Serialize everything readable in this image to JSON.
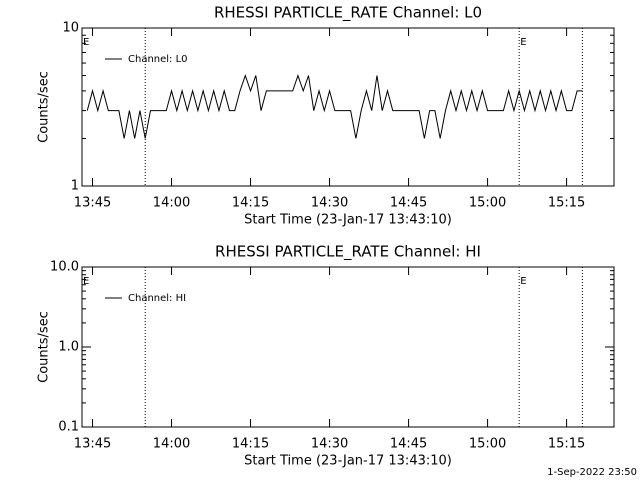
{
  "chart_data": [
    {
      "type": "line",
      "title": "RHESSI PARTICLE_RATE Channel: L0",
      "xlabel": "Start Time (23-Jan-17 13:43:10)",
      "ylabel": "Counts/sec",
      "log_y": true,
      "ylim": [
        1,
        10
      ],
      "yticks": [
        1,
        10
      ],
      "xlim": [
        "13:43",
        "15:24"
      ],
      "xticks": [
        "13:45",
        "14:00",
        "14:15",
        "14:30",
        "14:45",
        "15:00",
        "15:15"
      ],
      "event_lines": [
        "13:55",
        "15:06",
        "15:18"
      ],
      "event_label": "E",
      "event_label_x": [
        "13:43",
        "15:06"
      ],
      "legend": "upper left",
      "x": [
        "13:44",
        "13:45",
        "13:46",
        "13:47",
        "13:48",
        "13:49",
        "13:50",
        "13:51",
        "13:52",
        "13:53",
        "13:54",
        "13:55",
        "13:56",
        "13:57",
        "13:58",
        "13:59",
        "14:00",
        "14:01",
        "14:02",
        "14:03",
        "14:04",
        "14:05",
        "14:06",
        "14:07",
        "14:08",
        "14:09",
        "14:10",
        "14:11",
        "14:12",
        "14:13",
        "14:14",
        "14:15",
        "14:16",
        "14:17",
        "14:18",
        "14:19",
        "14:20",
        "14:21",
        "14:22",
        "14:23",
        "14:24",
        "14:25",
        "14:26",
        "14:27",
        "14:28",
        "14:29",
        "14:30",
        "14:31",
        "14:32",
        "14:33",
        "14:34",
        "14:35",
        "14:36",
        "14:37",
        "14:38",
        "14:39",
        "14:40",
        "14:41",
        "14:42",
        "14:43",
        "14:44",
        "14:45",
        "14:46",
        "14:47",
        "14:48",
        "14:49",
        "14:50",
        "14:51",
        "14:52",
        "14:53",
        "14:54",
        "14:55",
        "14:56",
        "14:57",
        "14:58",
        "14:59",
        "15:00",
        "15:01",
        "15:02",
        "15:03",
        "15:04",
        "15:05",
        "15:06",
        "15:07",
        "15:08",
        "15:09",
        "15:10",
        "15:11",
        "15:12",
        "15:13",
        "15:14",
        "15:15",
        "15:16",
        "15:17",
        "15:18"
      ],
      "series": [
        {
          "name": "Channel: L0",
          "color": "#000000",
          "values": [
            3,
            4,
            3,
            4,
            3,
            3,
            3,
            2,
            3,
            2,
            3,
            2,
            3,
            3,
            3,
            3,
            4,
            3,
            4,
            3,
            4,
            3,
            4,
            3,
            4,
            3,
            4,
            3,
            3,
            4,
            5,
            4,
            5,
            3,
            4,
            4,
            4,
            4,
            4,
            4,
            5,
            4,
            5,
            3,
            4,
            3,
            4,
            3,
            3,
            3,
            3,
            2,
            3,
            4,
            3,
            5,
            3,
            4,
            3,
            3,
            3,
            3,
            3,
            3,
            2,
            3,
            3,
            2,
            3,
            4,
            3,
            4,
            3,
            4,
            3,
            4,
            3,
            3,
            3,
            3,
            4,
            3,
            4,
            3,
            4,
            3,
            4,
            3,
            4,
            3,
            4,
            3,
            3,
            4,
            4
          ]
        }
      ]
    },
    {
      "type": "line",
      "title": "RHESSI PARTICLE_RATE Channel: HI",
      "xlabel": "Start Time (23-Jan-17 13:43:10)",
      "ylabel": "Counts/sec",
      "log_y": true,
      "ylim": [
        0.1,
        10
      ],
      "yticks": [
        0.1,
        {
          "value": 1,
          "label": "1.0"
        },
        {
          "value": 10,
          "label": "10.0"
        }
      ],
      "xlim": [
        "13:43",
        "15:24"
      ],
      "xticks": [
        "13:45",
        "14:00",
        "14:15",
        "14:30",
        "14:45",
        "15:00",
        "15:15"
      ],
      "event_lines": [
        "13:55",
        "15:06",
        "15:18"
      ],
      "event_label": "E",
      "event_label_x": [
        "13:43",
        "15:06"
      ],
      "legend": "upper left",
      "x": [],
      "series": [
        {
          "name": "Channel: HI",
          "color": "#000000",
          "values": []
        }
      ]
    }
  ],
  "footer": "1-Sep-2022 23:50"
}
